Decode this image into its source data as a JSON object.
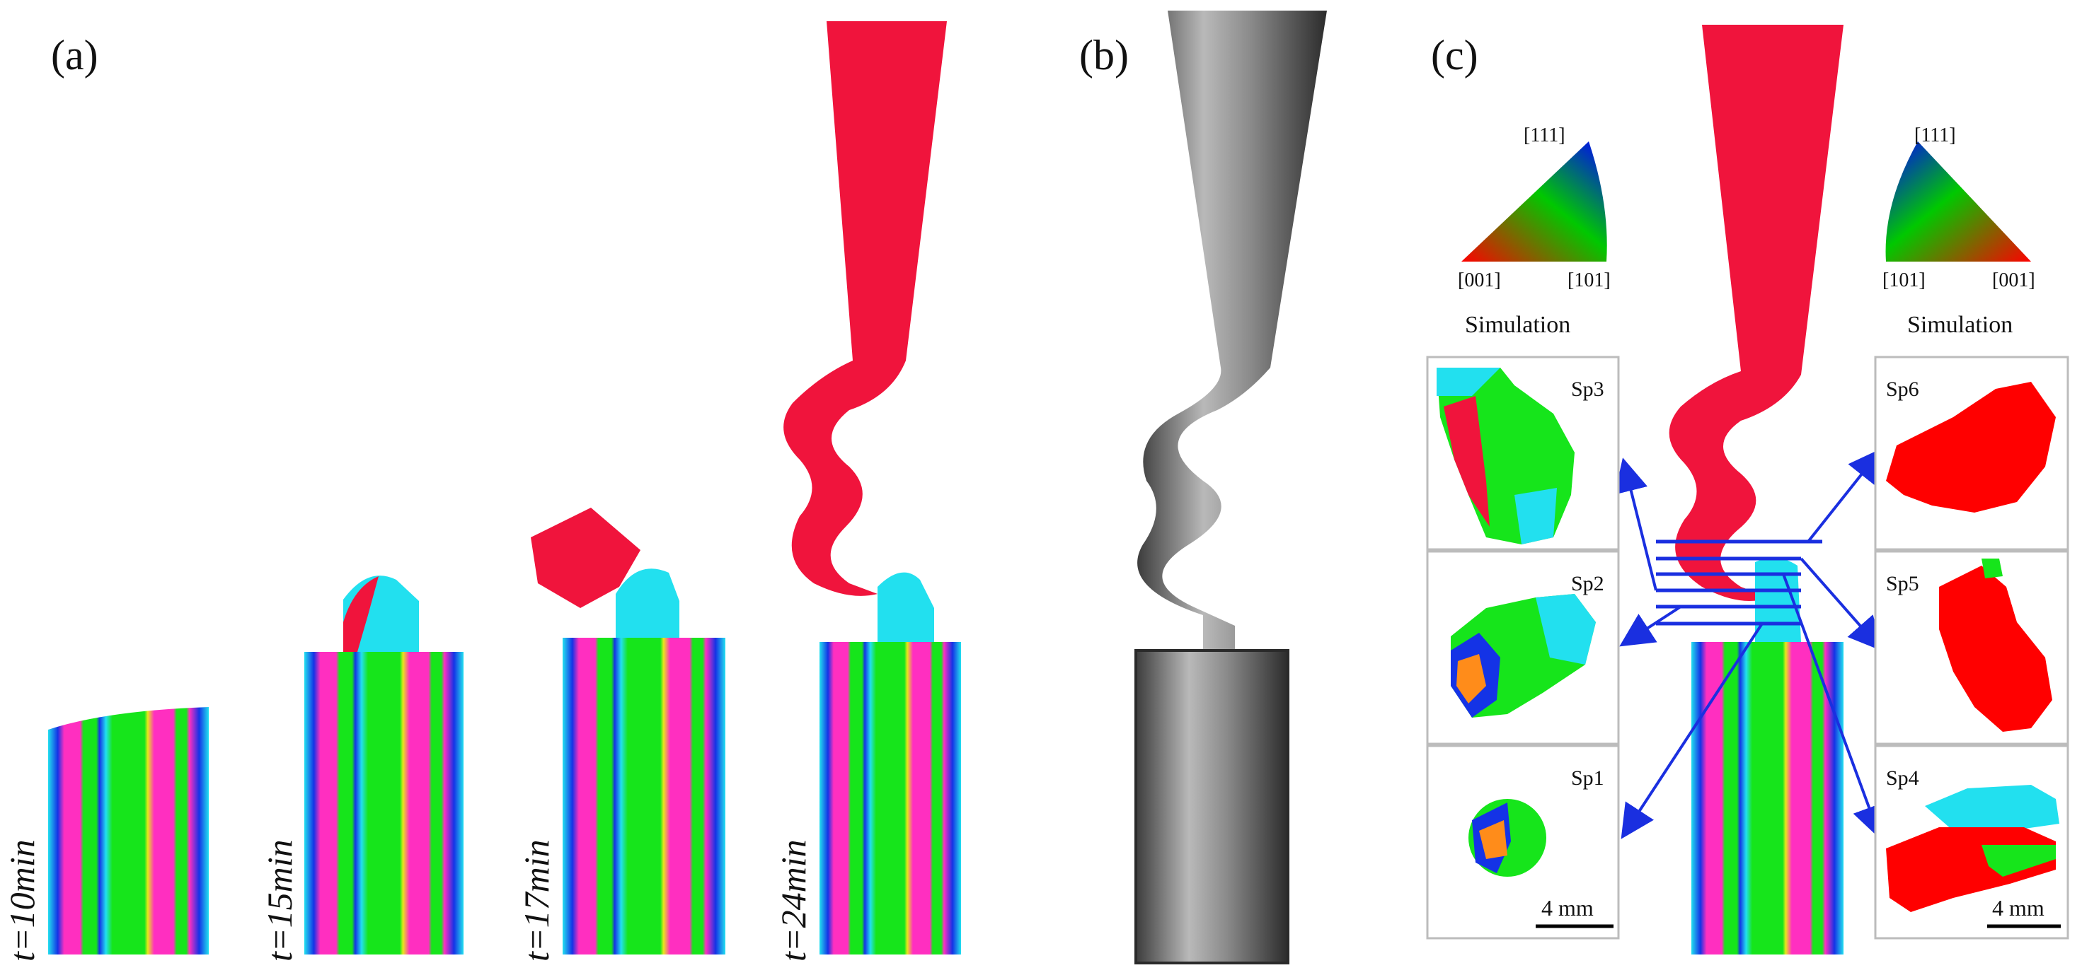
{
  "panels": {
    "a": "(a)",
    "b": "(b)",
    "c": "(c)"
  },
  "time_labels": [
    "t=10min",
    "t=15min",
    "t=17min",
    "t=24min"
  ],
  "ipf_left": {
    "top": "[111]",
    "bottom_left": "[001]",
    "bottom_right": "[101]",
    "caption": "Simulation"
  },
  "ipf_right": {
    "top": "[111]",
    "bottom_left": "[101]",
    "bottom_right": "[001]",
    "caption": "Simulation"
  },
  "sections": {
    "sp1": "Sp1",
    "sp2": "Sp2",
    "sp3": "Sp3",
    "sp4": "Sp4",
    "sp5": "Sp5",
    "sp6": "Sp6"
  },
  "scale_bar": "4 mm",
  "colors": {
    "red": "#f0143c",
    "green": "#16e51b",
    "magenta": "#ff2fc0",
    "blue": "#1433e6",
    "cyan": "#22e0ef",
    "yellow": "#e8e81a",
    "arrow": "#1a2fe0"
  }
}
